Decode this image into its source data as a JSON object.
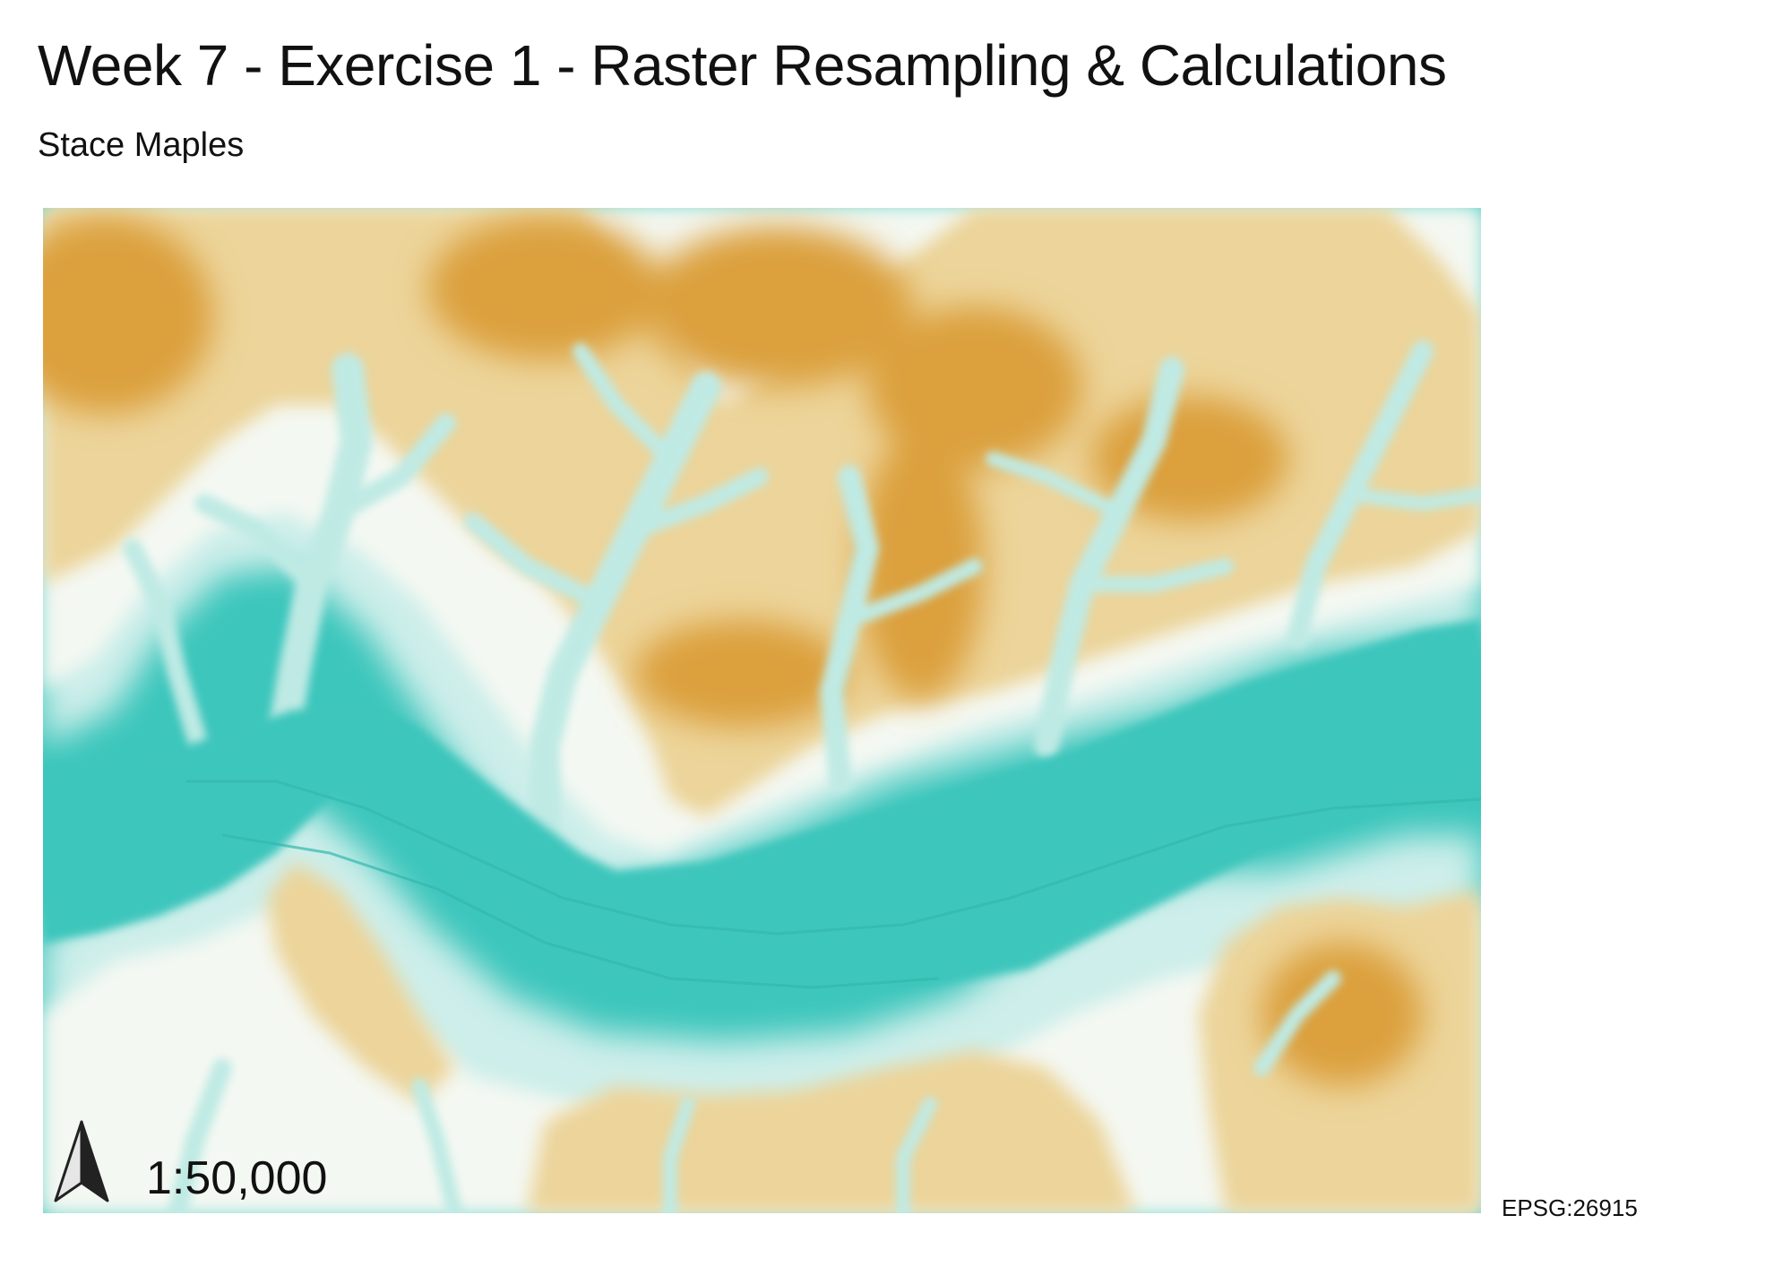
{
  "map": {
    "title": "Week 7 - Exercise 1 - Raster Resampling & Calculations",
    "author": "Stace Maples",
    "scale": "1:50,000",
    "crs": "EPSG:26915",
    "north_arrow_icon": "north-arrow-icon",
    "colors": {
      "lowland": "#3cc6bc",
      "slope_light": "#d8f2ee",
      "mid_slope": "#f2e7c4",
      "upland": "#e5be6a",
      "peak": "#d99a2b"
    }
  }
}
